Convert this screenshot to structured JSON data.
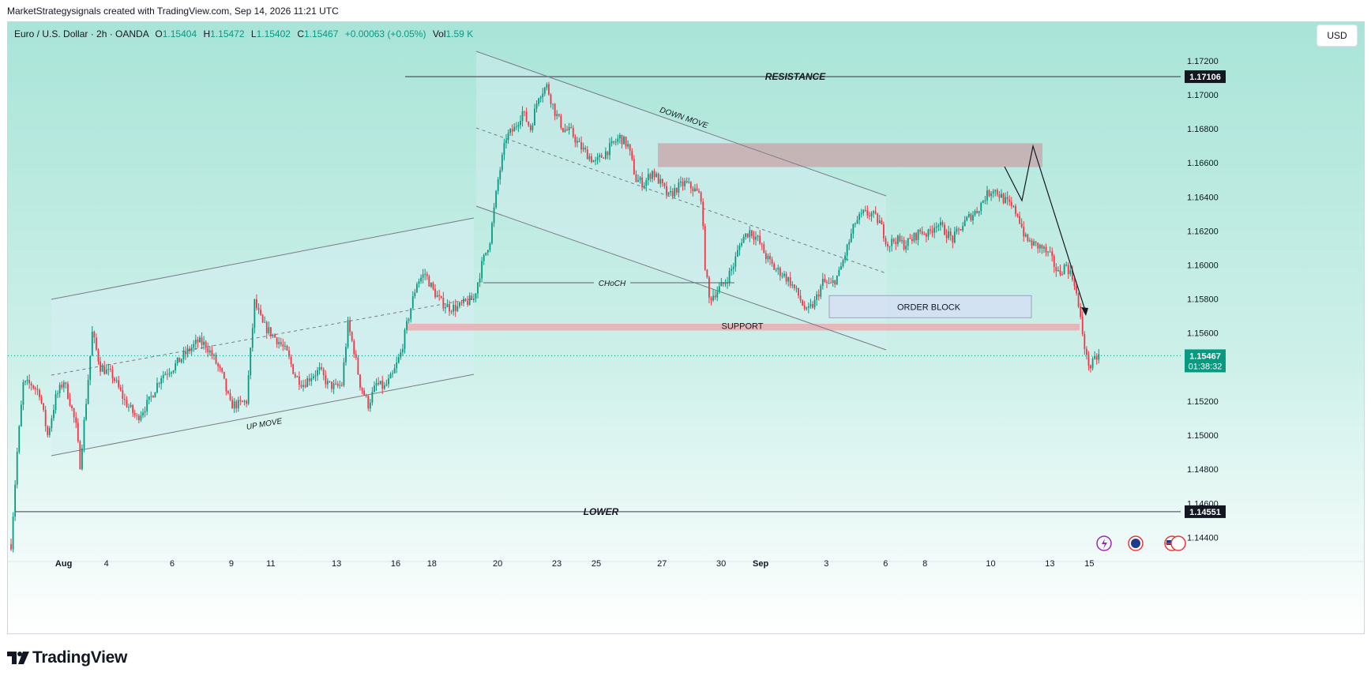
{
  "header": {
    "credit": "MarketStrategysignals created with TradingView.com, Sep 14, 2026 11:21 UTC"
  },
  "legend": {
    "symbol": "Euro / U.S. Dollar · 2h · OANDA",
    "open_label": "O",
    "open": "1.15404",
    "high_label": "H",
    "high": "1.15472",
    "low_label": "L",
    "low": "1.15402",
    "close_label": "C",
    "close": "1.15467",
    "change": "+0.00063 (+0.05%)",
    "vol_label": "Vol",
    "vol": "1.59 K"
  },
  "currency_button": "USD",
  "price_axis": {
    "ticks": [
      "1.17200",
      "1.17000",
      "1.16800",
      "1.16600",
      "1.16400",
      "1.16200",
      "1.16000",
      "1.15800",
      "1.15600",
      "1.15200",
      "1.15000",
      "1.14800",
      "1.14600",
      "1.14400"
    ],
    "resistance_tag": "1.17106",
    "lower_tag": "1.14551",
    "last_price_tag": "1.15467",
    "countdown": "01:38:32"
  },
  "time_axis": {
    "labels": [
      "Aug",
      "4",
      "6",
      "9",
      "11",
      "13",
      "16",
      "18",
      "20",
      "23",
      "25",
      "27",
      "30",
      "Sep",
      "3",
      "6",
      "8",
      "10",
      "13",
      "15"
    ]
  },
  "annotations": {
    "resistance": "RESISTANCE",
    "lower": "LOWER",
    "support": "SUPPORT",
    "order_block": "ORDER BLOCK",
    "choch": "CHoCH",
    "up_move": "UP MOVE",
    "down_move": "DOWN MOVE"
  },
  "colors": {
    "bull": "#089981",
    "bear": "#f23645",
    "tag_bg": "#131722",
    "last_price_bg": "#089981",
    "support_zone": "#f2a0a5",
    "supply_zone": "#c9a3a8",
    "order_block_zone": "#d4e0f2"
  },
  "footer": {
    "brand": "TradingView"
  },
  "chart_data": {
    "type": "candlestick",
    "symbol": "EURUSD",
    "timeframe": "2h",
    "ylim": [
      1.143,
      1.1738
    ],
    "levels": [
      {
        "name": "RESISTANCE",
        "value": 1.17106
      },
      {
        "name": "LOWER",
        "value": 1.14551
      }
    ],
    "zones": [
      {
        "name": "SUPPORT",
        "from": 1.15615,
        "to": 1.15655
      },
      {
        "name": "ORDER BLOCK",
        "from": 1.1569,
        "to": 1.1582
      },
      {
        "name": "supply",
        "from": 1.16575,
        "to": 1.16715
      }
    ],
    "path": [
      [
        0,
        1.1436
      ],
      [
        3,
        1.149
      ],
      [
        6,
        1.153
      ],
      [
        10,
        1.153
      ],
      [
        14,
        1.1525
      ],
      [
        18,
        1.15
      ],
      [
        22,
        1.1522
      ],
      [
        26,
        1.1532
      ],
      [
        29,
        1.152
      ],
      [
        32,
        1.1505
      ],
      [
        34,
        1.1483
      ],
      [
        37,
        1.152
      ],
      [
        40,
        1.156
      ],
      [
        44,
        1.154
      ],
      [
        50,
        1.1535
      ],
      [
        56,
        1.152
      ],
      [
        62,
        1.151
      ],
      [
        68,
        1.152
      ],
      [
        74,
        1.1535
      ],
      [
        80,
        1.154
      ],
      [
        86,
        1.1548
      ],
      [
        92,
        1.1555
      ],
      [
        96,
        1.1553
      ],
      [
        100,
        1.1545
      ],
      [
        104,
        1.1535
      ],
      [
        108,
        1.1518
      ],
      [
        112,
        1.1518
      ],
      [
        116,
        1.152
      ],
      [
        120,
        1.1578
      ],
      [
        124,
        1.1565
      ],
      [
        128,
        1.156
      ],
      [
        132,
        1.1555
      ],
      [
        136,
        1.1548
      ],
      [
        140,
        1.1535
      ],
      [
        144,
        1.153
      ],
      [
        148,
        1.1535
      ],
      [
        152,
        1.1538
      ],
      [
        156,
        1.153
      ],
      [
        160,
        1.1528
      ],
      [
        163,
        1.153
      ],
      [
        166,
        1.1565
      ],
      [
        169,
        1.155
      ],
      [
        172,
        1.153
      ],
      [
        176,
        1.1518
      ],
      [
        180,
        1.153
      ],
      [
        184,
        1.1528
      ],
      [
        188,
        1.1535
      ],
      [
        192,
        1.1548
      ],
      [
        196,
        1.157
      ],
      [
        200,
        1.159
      ],
      [
        204,
        1.1595
      ],
      [
        208,
        1.1585
      ],
      [
        212,
        1.1578
      ],
      [
        216,
        1.1575
      ],
      [
        220,
        1.1575
      ],
      [
        224,
        1.1578
      ],
      [
        228,
        1.158
      ],
      [
        232,
        1.16
      ],
      [
        236,
        1.1615
      ],
      [
        240,
        1.165
      ],
      [
        244,
        1.1675
      ],
      [
        248,
        1.168
      ],
      [
        252,
        1.169
      ],
      [
        256,
        1.168
      ],
      [
        260,
        1.17
      ],
      [
        264,
        1.1705
      ],
      [
        268,
        1.169
      ],
      [
        272,
        1.168
      ],
      [
        276,
        1.1678
      ],
      [
        280,
        1.167
      ],
      [
        284,
        1.1665
      ],
      [
        288,
        1.166
      ],
      [
        292,
        1.1665
      ],
      [
        296,
        1.167
      ],
      [
        300,
        1.1675
      ],
      [
        304,
        1.167
      ],
      [
        308,
        1.165
      ],
      [
        312,
        1.1648
      ],
      [
        316,
        1.1655
      ],
      [
        320,
        1.1648
      ],
      [
        324,
        1.164
      ],
      [
        328,
        1.1645
      ],
      [
        332,
        1.1648
      ],
      [
        336,
        1.1645
      ],
      [
        340,
        1.164
      ],
      [
        342,
        1.16
      ],
      [
        344,
        1.158
      ],
      [
        348,
        1.1585
      ],
      [
        352,
        1.159
      ],
      [
        356,
        1.16
      ],
      [
        360,
        1.1615
      ],
      [
        364,
        1.162
      ],
      [
        368,
        1.1615
      ],
      [
        372,
        1.1605
      ],
      [
        376,
        1.1598
      ],
      [
        380,
        1.1595
      ],
      [
        384,
        1.159
      ],
      [
        388,
        1.1582
      ],
      [
        392,
        1.1572
      ],
      [
        396,
        1.1578
      ],
      [
        400,
        1.159
      ],
      [
        404,
        1.1588
      ],
      [
        408,
        1.1595
      ],
      [
        412,
        1.161
      ],
      [
        416,
        1.1625
      ],
      [
        420,
        1.163
      ],
      [
        424,
        1.163
      ],
      [
        428,
        1.1625
      ],
      [
        432,
        1.1612
      ],
      [
        436,
        1.1615
      ],
      [
        440,
        1.1612
      ],
      [
        444,
        1.1615
      ],
      [
        448,
        1.162
      ],
      [
        452,
        1.1618
      ],
      [
        456,
        1.1625
      ],
      [
        460,
        1.162
      ],
      [
        464,
        1.1615
      ],
      [
        468,
        1.1622
      ],
      [
        472,
        1.1628
      ],
      [
        476,
        1.1632
      ],
      [
        480,
        1.164
      ],
      [
        484,
        1.1645
      ],
      [
        488,
        1.164
      ],
      [
        492,
        1.1635
      ],
      [
        496,
        1.163
      ],
      [
        500,
        1.1615
      ],
      [
        504,
        1.1612
      ],
      [
        508,
        1.161
      ],
      [
        512,
        1.1605
      ],
      [
        516,
        1.1595
      ],
      [
        520,
        1.16
      ],
      [
        524,
        1.159
      ],
      [
        526,
        1.1575
      ],
      [
        528,
        1.156
      ],
      [
        530,
        1.1545
      ],
      [
        532,
        1.154
      ],
      [
        534,
        1.1544
      ],
      [
        536,
        1.1547
      ]
    ],
    "x_ticks": [
      {
        "label": "Aug",
        "x": 16
      },
      {
        "label": "4",
        "x": 29
      },
      {
        "label": "6",
        "x": 49
      },
      {
        "label": "9",
        "x": 67
      },
      {
        "label": "11",
        "x": 79
      },
      {
        "label": "13",
        "x": 99
      },
      {
        "label": "16",
        "x": 117
      },
      {
        "label": "18",
        "x": 128
      },
      {
        "label": "20",
        "x": 148
      },
      {
        "label": "23",
        "x": 166
      },
      {
        "label": "25",
        "x": 178
      },
      {
        "label": "27",
        "x": 198
      },
      {
        "label": "30",
        "x": 216
      },
      {
        "label": "Sep",
        "x": 228
      },
      {
        "label": "3",
        "x": 248
      },
      {
        "label": "6",
        "x": 266
      },
      {
        "label": "8",
        "x": 278
      },
      {
        "label": "10",
        "x": 298
      },
      {
        "label": "13",
        "x": 316
      },
      {
        "label": "15",
        "x": 328
      }
    ]
  }
}
